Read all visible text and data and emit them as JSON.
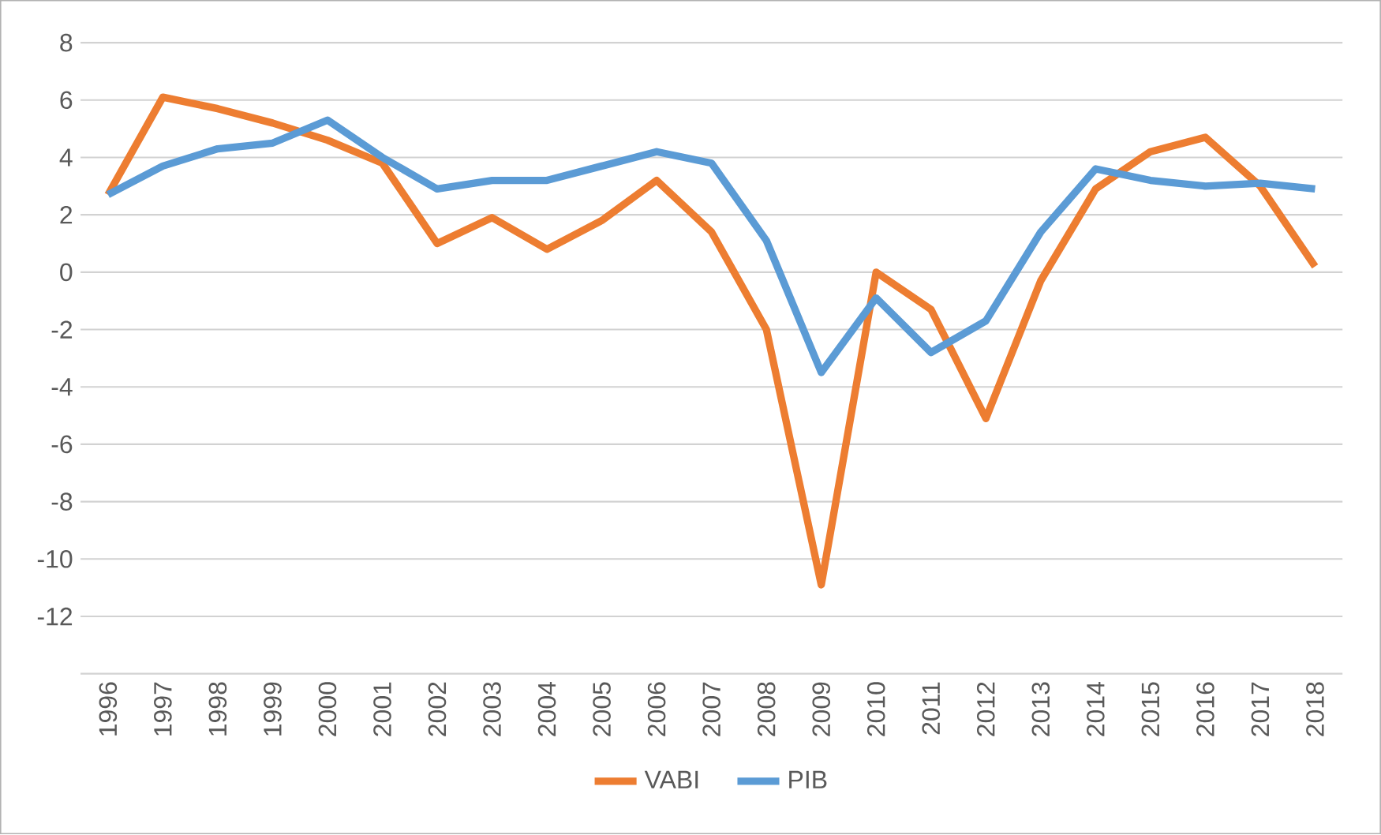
{
  "chart_data": {
    "type": "line",
    "categories": [
      "1996",
      "1997",
      "1998",
      "1999",
      "2000",
      "2001",
      "2002",
      "2003",
      "2004",
      "2005",
      "2006",
      "2007",
      "2008",
      "2009",
      "2010",
      "2011",
      "2012",
      "2013",
      "2014",
      "2015",
      "2016",
      "2017",
      "2018"
    ],
    "series": [
      {
        "name": "VABI",
        "color": "#ed7d31",
        "values": [
          2.7,
          6.1,
          5.7,
          5.2,
          4.6,
          3.8,
          1.0,
          1.9,
          0.8,
          1.8,
          3.2,
          1.4,
          -2.0,
          -10.9,
          0.0,
          -1.3,
          -5.1,
          -0.3,
          2.9,
          4.2,
          4.7,
          3.0,
          0.2
        ]
      },
      {
        "name": "PIB",
        "color": "#5b9bd5",
        "values": [
          2.7,
          3.7,
          4.3,
          4.5,
          5.3,
          4.0,
          2.9,
          3.2,
          3.2,
          3.7,
          4.2,
          3.8,
          1.1,
          -3.5,
          -0.9,
          -2.8,
          -1.7,
          1.4,
          3.6,
          3.2,
          3.0,
          3.1,
          2.9
        ]
      }
    ],
    "ylim": [
      -14,
      8
    ],
    "yticks": [
      {
        "value": -14,
        "label": null
      },
      -12,
      -10,
      -8,
      -6,
      -4,
      -2,
      0,
      2,
      4,
      6,
      8
    ],
    "grid": "y",
    "legend": "bottom",
    "marker": "none",
    "line_style": "solid"
  }
}
